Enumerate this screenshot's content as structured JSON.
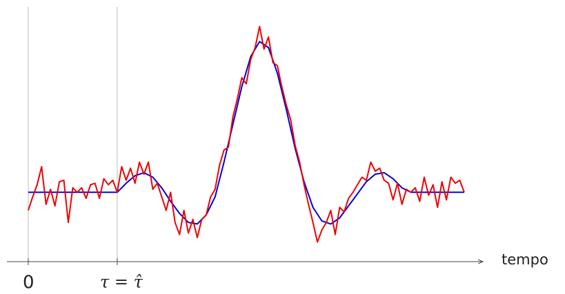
{
  "chart_data": {
    "type": "line",
    "x_label": "tempo",
    "xlim": [
      -0.24,
      5.11
    ],
    "ylim": [
      -0.46,
      1.23
    ],
    "xticks": [
      0,
      {
        "value": 1,
        "label": "τ = τ̂"
      }
    ],
    "grid": true,
    "series": [
      {
        "color": "#0000dd",
        "x": [
          0,
          0.1,
          0.2,
          0.3,
          0.4,
          0.5,
          0.6,
          0.7,
          0.8,
          0.9,
          1.0,
          1.1,
          1.2,
          1.3,
          1.4,
          1.5,
          1.6,
          1.7,
          1.8,
          1.9,
          2.0,
          2.1,
          2.2,
          2.3,
          2.4,
          2.5,
          2.6,
          2.7,
          2.8,
          2.9,
          3.0,
          3.1,
          3.2,
          3.3,
          3.4,
          3.5,
          3.6,
          3.7,
          3.8,
          3.9,
          4.0,
          4.1,
          4.2,
          4.3,
          4.4,
          4.5,
          4.6,
          4.7,
          4.8,
          4.9
        ],
        "values": [
          0,
          0,
          0,
          0,
          0,
          0,
          0,
          0,
          0,
          0,
          0,
          0.06,
          0.11,
          0.13,
          0.1,
          0.03,
          -0.06,
          -0.14,
          -0.2,
          -0.21,
          -0.15,
          -0.03,
          0.2,
          0.45,
          0.7,
          0.9,
          1.0,
          0.96,
          0.79,
          0.55,
          0.29,
          0.07,
          -0.1,
          -0.19,
          -0.21,
          -0.17,
          -0.09,
          -0.01,
          0.07,
          0.12,
          0.13,
          0.09,
          0.03,
          0,
          0,
          0,
          0,
          0,
          0,
          0
        ]
      },
      {
        "color": "#ee0000",
        "x": [
          0,
          0.05,
          0.1,
          0.15,
          0.2,
          0.25,
          0.3,
          0.35,
          0.4,
          0.45,
          0.5,
          0.55,
          0.6,
          0.65,
          0.7,
          0.75,
          0.8,
          0.85,
          0.9,
          0.95,
          1.0,
          1.05,
          1.1,
          1.15,
          1.2,
          1.25,
          1.3,
          1.35,
          1.4,
          1.45,
          1.5,
          1.55,
          1.6,
          1.65,
          1.7,
          1.75,
          1.8,
          1.85,
          1.9,
          1.95,
          2.0,
          2.05,
          2.1,
          2.15,
          2.2,
          2.25,
          2.3,
          2.35,
          2.4,
          2.45,
          2.5,
          2.55,
          2.6,
          2.65,
          2.7,
          2.75,
          2.8,
          2.85,
          2.9,
          2.95,
          3.0,
          3.05,
          3.1,
          3.15,
          3.2,
          3.25,
          3.3,
          3.35,
          3.4,
          3.45,
          3.5,
          3.55,
          3.6,
          3.65,
          3.7,
          3.75,
          3.8,
          3.85,
          3.9,
          3.95,
          4.0,
          4.05,
          4.1,
          4.15,
          4.2,
          4.25,
          4.3,
          4.35,
          4.4,
          4.45,
          4.5,
          4.55,
          4.6,
          4.65,
          4.7,
          4.75,
          4.8,
          4.85,
          4.9
        ],
        "values": [
          -0.12,
          -0.03,
          0.05,
          0.17,
          -0.08,
          0.02,
          -0.09,
          0.07,
          0.08,
          -0.2,
          0.03,
          0.0,
          0.03,
          -0.04,
          0.05,
          0.06,
          -0.04,
          0.09,
          0.05,
          0.08,
          0.0,
          0.17,
          0.08,
          0.16,
          0.06,
          0.2,
          0.12,
          0.2,
          0.02,
          0.06,
          -0.03,
          -0.12,
          0.0,
          -0.2,
          -0.28,
          -0.12,
          -0.27,
          -0.18,
          -0.3,
          -0.18,
          -0.15,
          -0.03,
          0.02,
          0.18,
          0.28,
          0.3,
          0.5,
          0.62,
          0.76,
          0.72,
          0.88,
          0.96,
          1.1,
          0.95,
          1.03,
          0.86,
          0.84,
          0.7,
          0.58,
          0.48,
          0.31,
          0.2,
          0.05,
          -0.08,
          -0.2,
          -0.33,
          -0.25,
          -0.2,
          -0.12,
          -0.28,
          -0.1,
          -0.13,
          -0.04,
          0.0,
          0.05,
          0.1,
          0.08,
          0.2,
          0.14,
          0.16,
          0.08,
          0.06,
          -0.05,
          0.06,
          -0.08,
          0.02,
          0.0,
          0.03,
          -0.06,
          0.1,
          -0.02,
          0.05,
          -0.1,
          0.07,
          -0.05,
          0.1,
          0.06,
          0.08,
          0.0
        ]
      }
    ]
  }
}
